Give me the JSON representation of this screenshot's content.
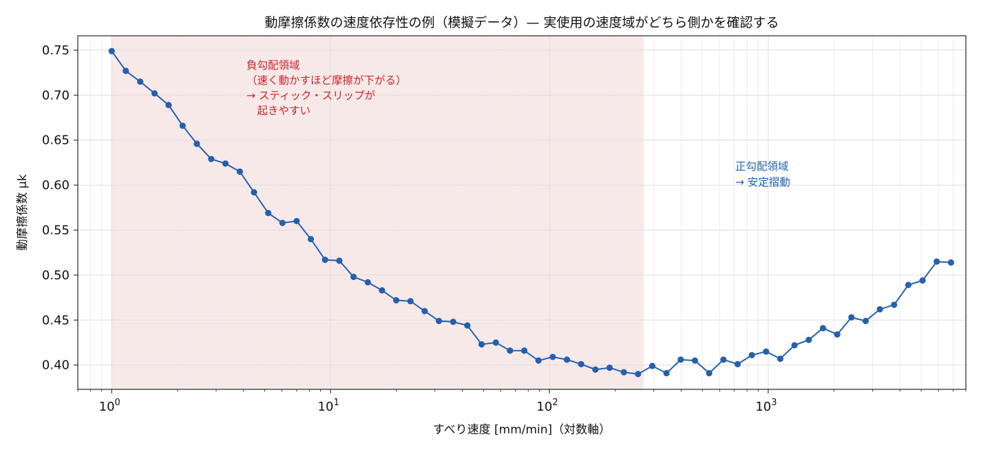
{
  "chart_data": {
    "type": "line",
    "title": "動摩擦係数の速度依存性の例（模擬データ）— 実使用の速度域がどちら側かを確認する",
    "xlabel": "すべり速度 [mm/min]（対数軸）",
    "ylabel": "動摩擦係数 μk",
    "xscale": "log",
    "xlim": [
      0.7,
      8000
    ],
    "ylim": [
      0.373,
      0.766
    ],
    "grid": true,
    "x_ticks": [
      {
        "base": "10",
        "exp": "0"
      },
      {
        "base": "10",
        "exp": "1"
      },
      {
        "base": "10",
        "exp": "2"
      },
      {
        "base": "10",
        "exp": "3"
      }
    ],
    "y_ticks": [
      "0.40",
      "0.45",
      "0.50",
      "0.55",
      "0.60",
      "0.65",
      "0.70",
      "0.75"
    ],
    "shaded_region": {
      "x0": 1,
      "x1": 270,
      "color": "#f8e9e9"
    },
    "series": [
      {
        "color": "#2460ad",
        "points": [
          [
            1.0,
            0.749
          ],
          [
            1.16,
            0.727
          ],
          [
            1.35,
            0.715
          ],
          [
            1.57,
            0.702
          ],
          [
            1.82,
            0.689
          ],
          [
            2.11,
            0.666
          ],
          [
            2.45,
            0.646
          ],
          [
            2.85,
            0.629
          ],
          [
            3.31,
            0.624
          ],
          [
            3.85,
            0.615
          ],
          [
            4.47,
            0.592
          ],
          [
            5.19,
            0.569
          ],
          [
            6.03,
            0.558
          ],
          [
            7.0,
            0.56
          ],
          [
            8.13,
            0.54
          ],
          [
            9.44,
            0.517
          ],
          [
            10.97,
            0.516
          ],
          [
            12.74,
            0.498
          ],
          [
            14.8,
            0.492
          ],
          [
            17.19,
            0.483
          ],
          [
            19.96,
            0.472
          ],
          [
            23.19,
            0.471
          ],
          [
            26.93,
            0.46
          ],
          [
            31.28,
            0.449
          ],
          [
            36.33,
            0.448
          ],
          [
            42.19,
            0.444
          ],
          [
            49.0,
            0.423
          ],
          [
            56.92,
            0.425
          ],
          [
            66.1,
            0.416
          ],
          [
            76.78,
            0.416
          ],
          [
            89.17,
            0.405
          ],
          [
            103.6,
            0.409
          ],
          [
            120.3,
            0.406
          ],
          [
            139.7,
            0.401
          ],
          [
            162.3,
            0.395
          ],
          [
            188.5,
            0.397
          ],
          [
            218.9,
            0.392
          ],
          [
            254.2,
            0.39
          ],
          [
            295.3,
            0.399
          ],
          [
            343.0,
            0.391
          ],
          [
            398.3,
            0.406
          ],
          [
            462.6,
            0.405
          ],
          [
            537.3,
            0.391
          ],
          [
            624.1,
            0.406
          ],
          [
            724.8,
            0.401
          ],
          [
            841.8,
            0.411
          ],
          [
            977.7,
            0.415
          ],
          [
            1135.6,
            0.407
          ],
          [
            1318.9,
            0.422
          ],
          [
            1531.9,
            0.428
          ],
          [
            1779.2,
            0.441
          ],
          [
            2066.5,
            0.434
          ],
          [
            2400.2,
            0.453
          ],
          [
            2787.7,
            0.449
          ],
          [
            3237.8,
            0.462
          ],
          [
            3760.5,
            0.467
          ],
          [
            4367.6,
            0.489
          ],
          [
            5072.7,
            0.494
          ],
          [
            5891.6,
            0.515
          ],
          [
            6842.8,
            0.514
          ]
        ]
      }
    ],
    "annotations": [
      {
        "color": "#c9252a",
        "lines": [
          "負勾配領域",
          "（速く動かすほど摩擦が下がる）",
          "→ スティック・スリップが",
          "　起きやすい"
        ]
      },
      {
        "color": "#2463ad",
        "lines": [
          "正勾配領域",
          "→ 安定摺動"
        ]
      }
    ]
  }
}
